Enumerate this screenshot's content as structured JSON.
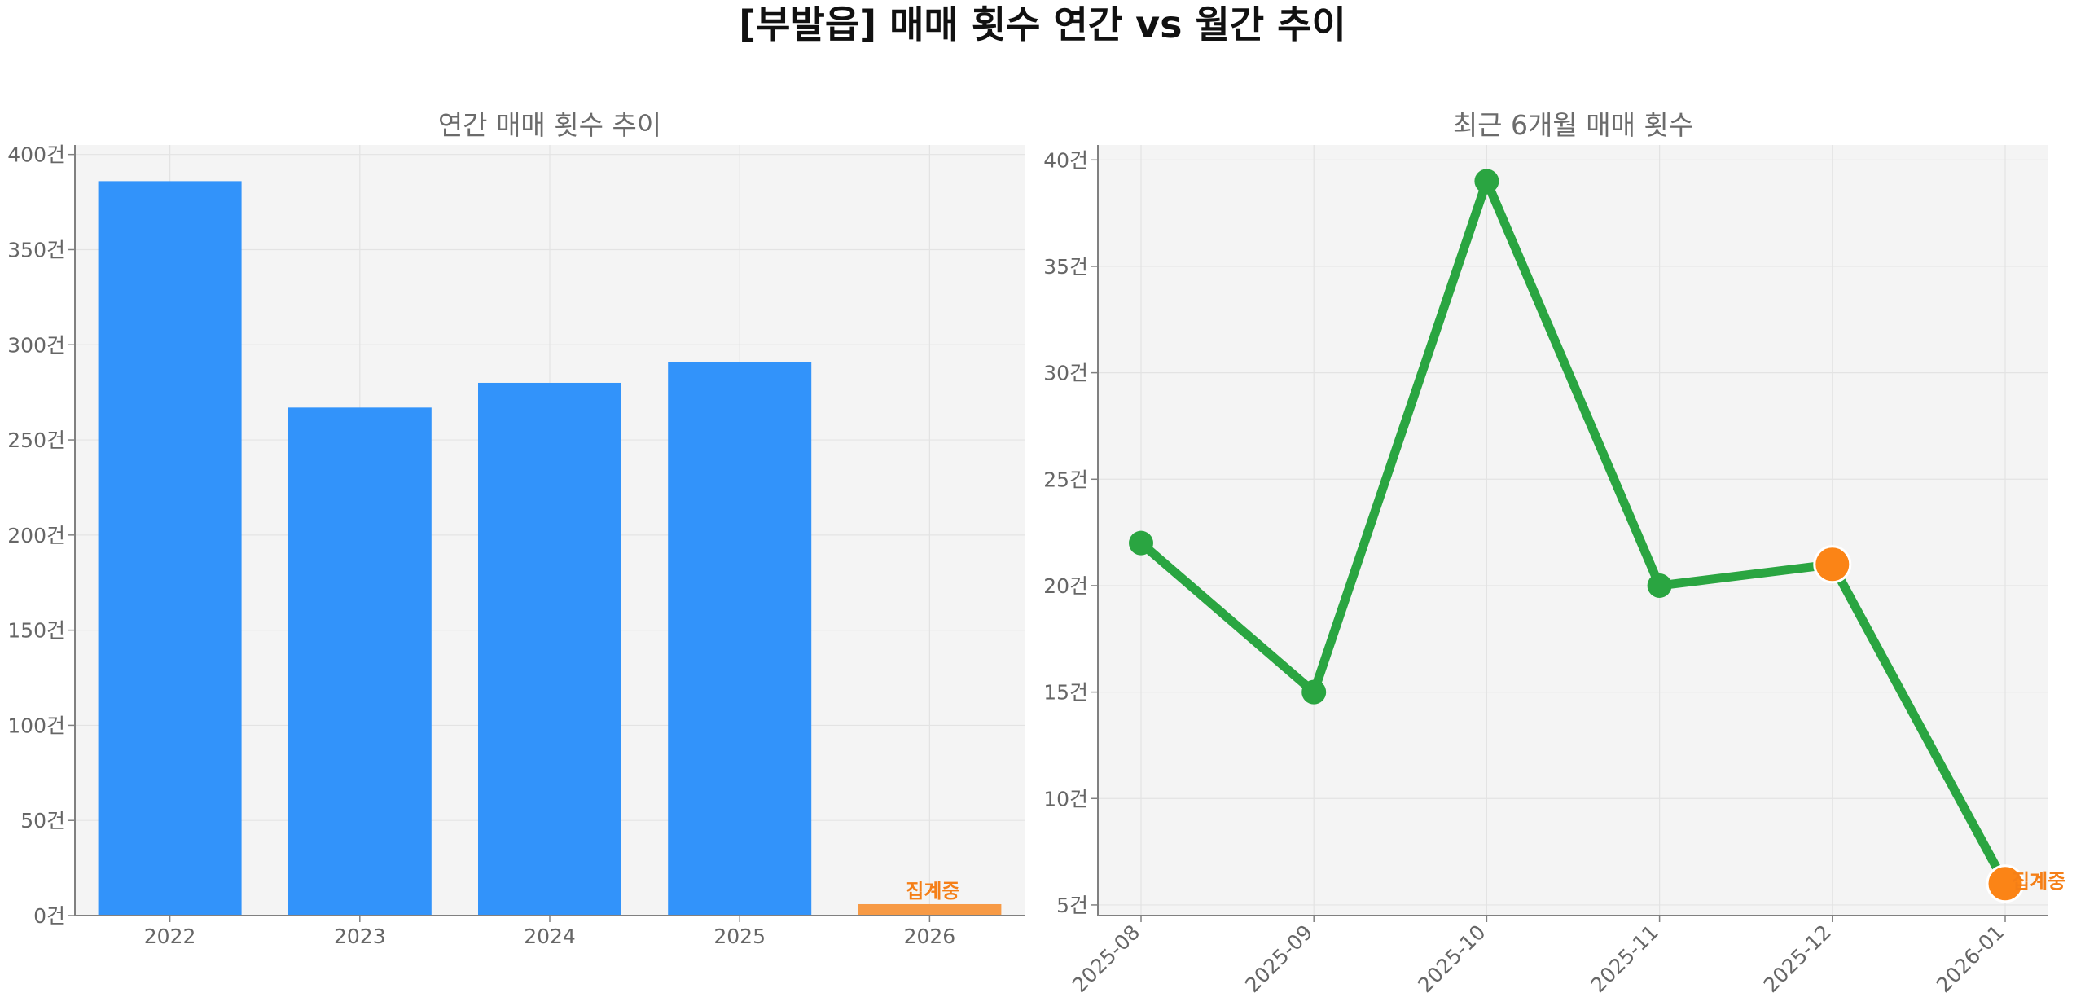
{
  "title": "[부발읍] 매매 횟수 연간 vs 월간 추이",
  "colors": {
    "bar": "#3293fa",
    "bar_partial": "#f79a45",
    "line": "#2aa541",
    "highlight": "#fb8416",
    "note": "#f57f17"
  },
  "chart_data": [
    {
      "type": "bar",
      "title": "연간 매매 횟수 추이",
      "categories": [
        "2022",
        "2023",
        "2024",
        "2025",
        "2026"
      ],
      "values": [
        386,
        267,
        280,
        291,
        6
      ],
      "partial_index": 4,
      "annotation": "집계중",
      "ylim": [
        0,
        405
      ],
      "yticks": [
        0,
        50,
        100,
        150,
        200,
        250,
        300,
        350,
        400
      ],
      "yunit": "건",
      "grid": true
    },
    {
      "type": "line",
      "title": "최근 6개월 매매 횟수",
      "x": [
        "2025-08",
        "2025-09",
        "2025-10",
        "2025-11",
        "2025-12",
        "2026-01"
      ],
      "values": [
        22,
        15,
        39,
        20,
        21,
        6
      ],
      "highlight_indices": [
        4,
        5
      ],
      "annotation": "집계중",
      "ylim": [
        4.5,
        40.7
      ],
      "yticks": [
        5,
        10,
        15,
        20,
        25,
        30,
        35,
        40
      ],
      "yunit": "건",
      "grid": true
    }
  ]
}
